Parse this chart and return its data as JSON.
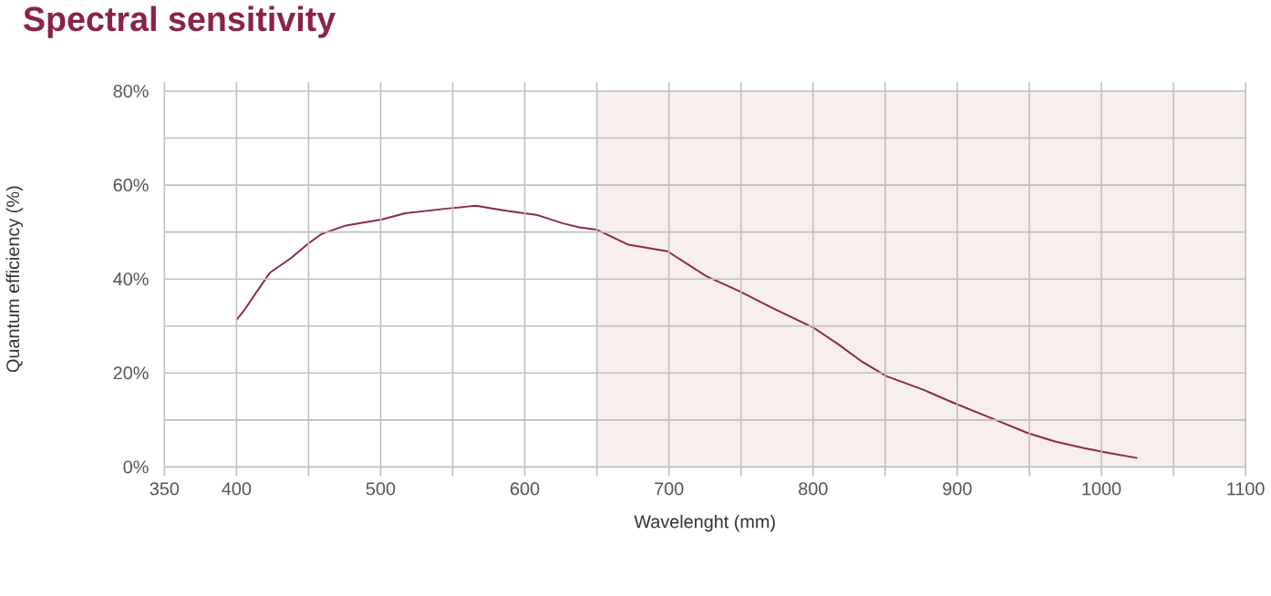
{
  "chart_data": {
    "type": "line",
    "title": "Spectral sensitivity",
    "xlabel": "Wavelenght (mm)",
    "ylabel": "Quantum efficiency (%)",
    "x": [
      400,
      405,
      417,
      423,
      438,
      450,
      459,
      476,
      501,
      517,
      546,
      566,
      588,
      609,
      626,
      638,
      650,
      672,
      699,
      726,
      749,
      772,
      800,
      818,
      834,
      851,
      876,
      897,
      926,
      949,
      968,
      988,
      1005,
      1025
    ],
    "series": [
      {
        "color": "#8a2a45",
        "values": [
          31.3,
          33.2,
          38.6,
          41.3,
          44.5,
          47.6,
          49.6,
          51.4,
          52.7,
          54.0,
          55.0,
          55.6,
          54.5,
          53.6,
          51.9,
          51.0,
          50.5,
          47.3,
          45.9,
          40.6,
          37.4,
          33.8,
          29.7,
          26.0,
          22.4,
          19.3,
          16.5,
          13.7,
          10.1,
          7.2,
          5.4,
          4.0,
          3.0,
          1.9
        ]
      }
    ],
    "xlim": [
      350,
      1100
    ],
    "ylim": [
      0,
      80
    ],
    "xticks": [
      350,
      400,
      {
        "value": 450,
        "label": null
      },
      500,
      {
        "value": 550,
        "label": null
      },
      600,
      {
        "value": 650,
        "label": null
      },
      700,
      {
        "value": 750,
        "label": null
      },
      800,
      {
        "value": 850,
        "label": null
      },
      900,
      {
        "value": 950,
        "label": null
      },
      1000,
      {
        "value": 1050,
        "label": null
      },
      1100
    ],
    "yticks": [
      {
        "value": 0,
        "label": "0%"
      },
      {
        "value": 10,
        "label": null
      },
      {
        "value": 20,
        "label": "20%"
      },
      {
        "value": 30,
        "label": null
      },
      {
        "value": 40,
        "label": "40%"
      },
      {
        "value": 50,
        "label": null
      },
      {
        "value": 60,
        "label": "60%"
      },
      {
        "value": 70,
        "label": null
      },
      {
        "value": 80,
        "label": "80%"
      }
    ],
    "bands": [
      {
        "axis": "x",
        "from": 650,
        "to": 1100,
        "color": "#f9eeee"
      }
    ],
    "grid": true,
    "marker": "none",
    "line_style": "solid"
  }
}
